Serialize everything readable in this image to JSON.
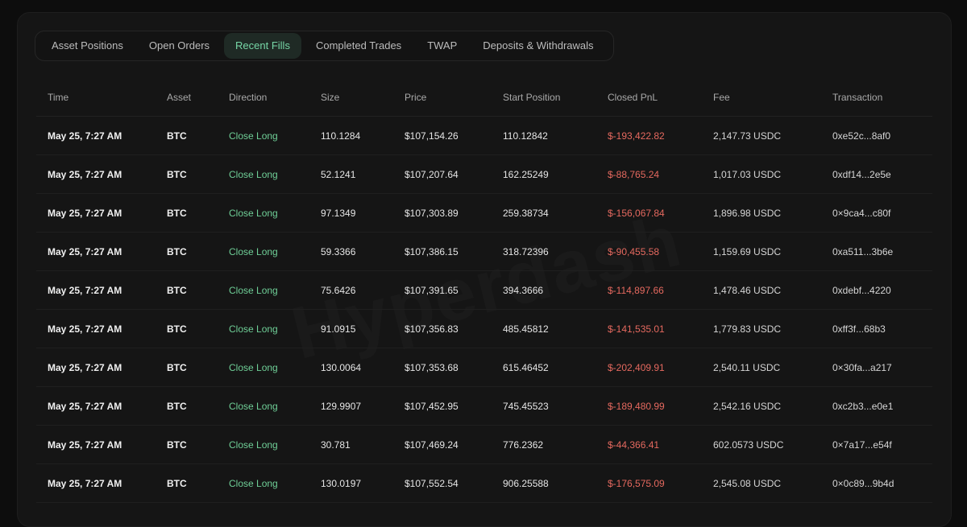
{
  "tabs": [
    {
      "label": "Asset Positions"
    },
    {
      "label": "Open Orders"
    },
    {
      "label": "Recent Fills"
    },
    {
      "label": "Completed Trades"
    },
    {
      "label": "TWAP"
    },
    {
      "label": "Deposits & Withdrawals"
    }
  ],
  "active_tab": "Recent Fills",
  "watermark": "Hyperdash",
  "colors": {
    "accent_green": "#6fcf97",
    "pnl_red": "#e5695f",
    "panel": "#151515"
  },
  "table": {
    "headers": [
      "Time",
      "Asset",
      "Direction",
      "Size",
      "Price",
      "Start Position",
      "Closed PnL",
      "Fee",
      "Transaction"
    ],
    "rows": [
      {
        "time": "May 25, 7:27 AM",
        "asset": "BTC",
        "direction": "Close Long",
        "size": "110.1284",
        "price": "$107,154.26",
        "start": "110.12842",
        "pnl": "$-193,422.82",
        "fee": "2,147.73 USDC",
        "tx": "0xe52c...8af0"
      },
      {
        "time": "May 25, 7:27 AM",
        "asset": "BTC",
        "direction": "Close Long",
        "size": "52.1241",
        "price": "$107,207.64",
        "start": "162.25249",
        "pnl": "$-88,765.24",
        "fee": "1,017.03 USDC",
        "tx": "0xdf14...2e5e"
      },
      {
        "time": "May 25, 7:27 AM",
        "asset": "BTC",
        "direction": "Close Long",
        "size": "97.1349",
        "price": "$107,303.89",
        "start": "259.38734",
        "pnl": "$-156,067.84",
        "fee": "1,896.98 USDC",
        "tx": "0×9ca4...c80f"
      },
      {
        "time": "May 25, 7:27 AM",
        "asset": "BTC",
        "direction": "Close Long",
        "size": "59.3366",
        "price": "$107,386.15",
        "start": "318.72396",
        "pnl": "$-90,455.58",
        "fee": "1,159.69 USDC",
        "tx": "0xa511...3b6e"
      },
      {
        "time": "May 25, 7:27 AM",
        "asset": "BTC",
        "direction": "Close Long",
        "size": "75.6426",
        "price": "$107,391.65",
        "start": "394.3666",
        "pnl": "$-114,897.66",
        "fee": "1,478.46 USDC",
        "tx": "0xdebf...4220"
      },
      {
        "time": "May 25, 7:27 AM",
        "asset": "BTC",
        "direction": "Close Long",
        "size": "91.0915",
        "price": "$107,356.83",
        "start": "485.45812",
        "pnl": "$-141,535.01",
        "fee": "1,779.83 USDC",
        "tx": "0xff3f...68b3"
      },
      {
        "time": "May 25, 7:27 AM",
        "asset": "BTC",
        "direction": "Close Long",
        "size": "130.0064",
        "price": "$107,353.68",
        "start": "615.46452",
        "pnl": "$-202,409.91",
        "fee": "2,540.11 USDC",
        "tx": "0×30fa...a217"
      },
      {
        "time": "May 25, 7:27 AM",
        "asset": "BTC",
        "direction": "Close Long",
        "size": "129.9907",
        "price": "$107,452.95",
        "start": "745.45523",
        "pnl": "$-189,480.99",
        "fee": "2,542.16 USDC",
        "tx": "0xc2b3...e0e1"
      },
      {
        "time": "May 25, 7:27 AM",
        "asset": "BTC",
        "direction": "Close Long",
        "size": "30.781",
        "price": "$107,469.24",
        "start": "776.2362",
        "pnl": "$-44,366.41",
        "fee": "602.0573 USDC",
        "tx": "0×7a17...e54f"
      },
      {
        "time": "May 25, 7:27 AM",
        "asset": "BTC",
        "direction": "Close Long",
        "size": "130.0197",
        "price": "$107,552.54",
        "start": "906.25588",
        "pnl": "$-176,575.09",
        "fee": "2,545.08 USDC",
        "tx": "0×0c89...9b4d"
      }
    ]
  }
}
